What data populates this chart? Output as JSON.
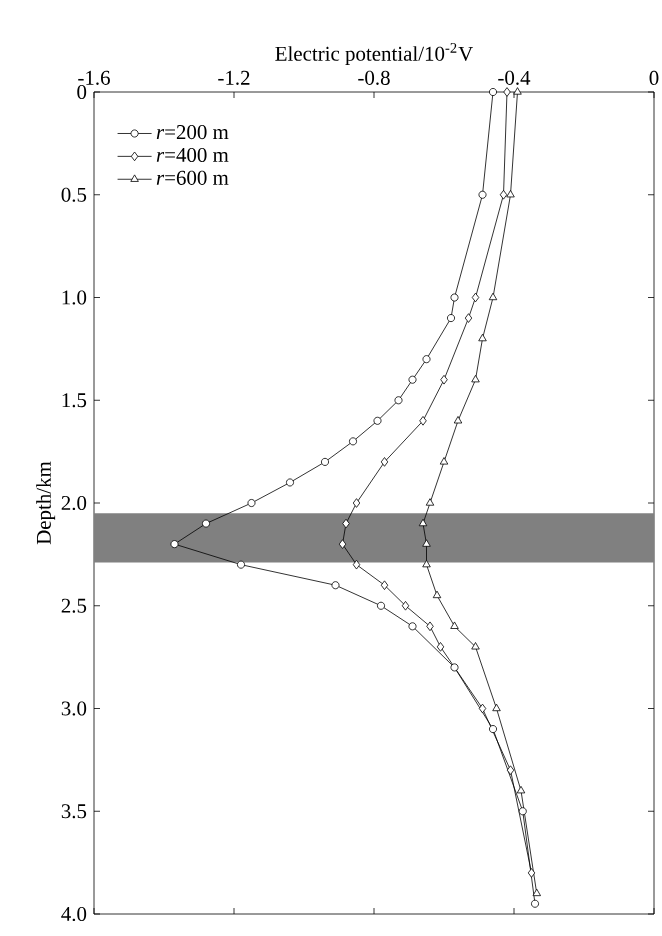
{
  "chart_data": {
    "type": "line",
    "xlabel": "Electric potential/10$^{-2}$V",
    "ylabel": "Depth/km",
    "xlim": [
      -1.6,
      0
    ],
    "xticks": [
      -1.6,
      -1.2,
      -0.8,
      -0.4,
      0
    ],
    "ylim": [
      4.0,
      0
    ],
    "yticks": [
      0,
      0.5,
      {
        "value": 1,
        "label": "1.0"
      },
      1.5,
      {
        "value": 2,
        "label": "2.0"
      },
      2.5,
      {
        "value": 3,
        "label": "3.0"
      },
      3.5,
      {
        "value": 4,
        "label": "4.0"
      }
    ],
    "legend": "top left",
    "grid": false,
    "line_style": "solid",
    "bands": [
      {
        "axis": "y",
        "from": 2.05,
        "to": 2.29,
        "color": "#808080"
      }
    ],
    "series": [
      {
        "name": "*r*=200 m",
        "color": "#000000",
        "marker": "circle",
        "x": [
          -0.46,
          -0.49,
          -0.57,
          -0.58,
          -0.65,
          -0.69,
          -0.73,
          -0.79,
          -0.86,
          -0.94,
          -1.04,
          -1.15,
          -1.28,
          -1.37,
          -1.18,
          -0.91,
          -0.78,
          -0.69,
          -0.57,
          -0.46,
          -0.375,
          -0.34
        ],
        "values": [
          0,
          0.5,
          1.0,
          1.1,
          1.3,
          1.4,
          1.5,
          1.6,
          1.7,
          1.8,
          1.9,
          2.0,
          2.1,
          2.2,
          2.3,
          2.4,
          2.5,
          2.6,
          2.8,
          3.1,
          3.5,
          3.95
        ]
      },
      {
        "name": "*r*=400 m",
        "color": "#000000",
        "marker": "diamond",
        "x": [
          -0.42,
          -0.43,
          -0.51,
          -0.53,
          -0.6,
          -0.66,
          -0.77,
          -0.85,
          -0.88,
          -0.89,
          -0.85,
          -0.77,
          -0.71,
          -0.64,
          -0.61,
          -0.49,
          -0.41,
          -0.35
        ],
        "values": [
          0,
          0.5,
          1.0,
          1.1,
          1.4,
          1.6,
          1.8,
          2.0,
          2.1,
          2.2,
          2.3,
          2.4,
          2.5,
          2.6,
          2.7,
          3.0,
          3.3,
          3.8
        ]
      },
      {
        "name": "*r*=600 m",
        "color": "#000000",
        "marker": "triangle",
        "x": [
          -0.39,
          -0.41,
          -0.46,
          -0.49,
          -0.51,
          -0.56,
          -0.6,
          -0.64,
          -0.66,
          -0.65,
          -0.65,
          -0.62,
          -0.57,
          -0.51,
          -0.45,
          -0.38,
          -0.335
        ],
        "values": [
          0,
          0.5,
          1.0,
          1.2,
          1.4,
          1.6,
          1.8,
          2.0,
          2.1,
          2.2,
          2.3,
          2.45,
          2.6,
          2.7,
          3.0,
          3.4,
          3.9
        ]
      }
    ]
  }
}
